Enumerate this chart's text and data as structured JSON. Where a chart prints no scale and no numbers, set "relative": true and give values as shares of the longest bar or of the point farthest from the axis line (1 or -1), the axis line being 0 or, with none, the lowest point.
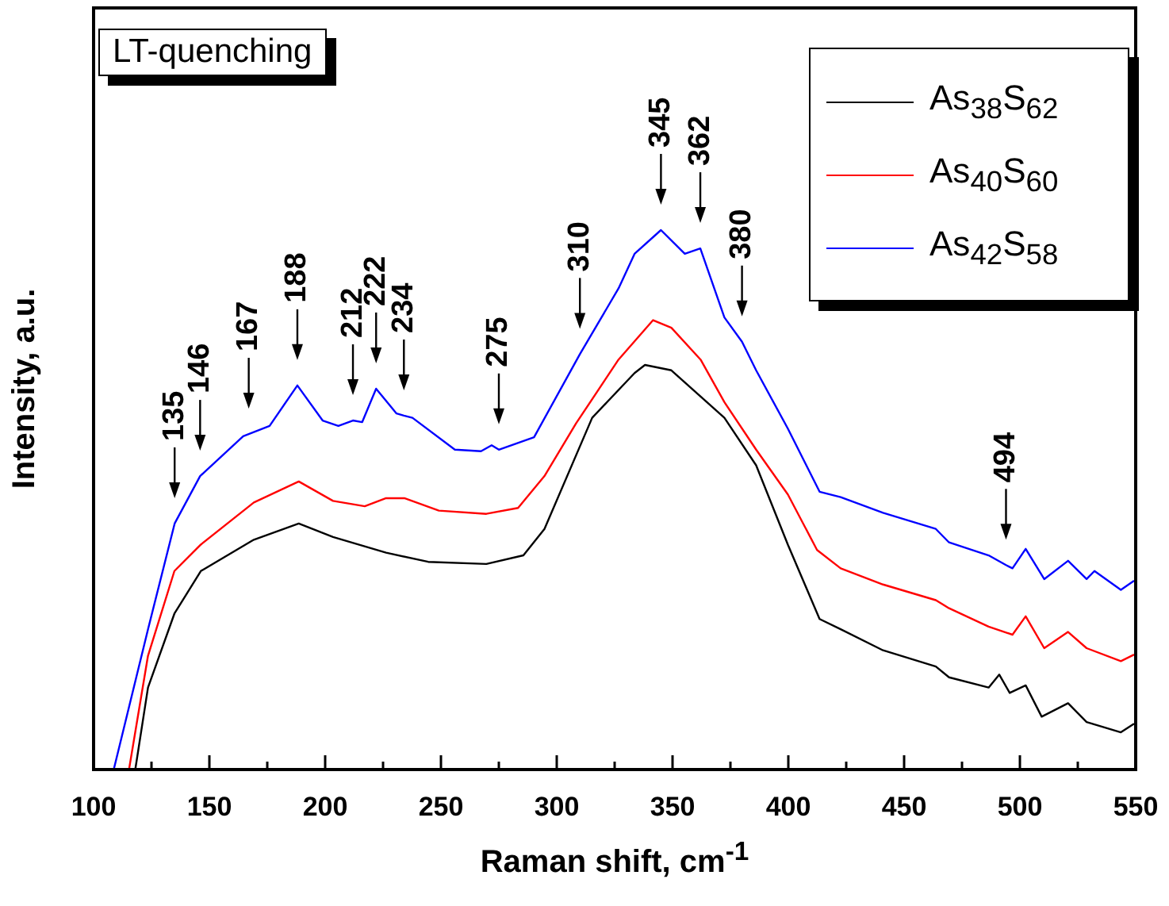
{
  "chart_data": {
    "type": "line",
    "title": "LT-quenching",
    "xlabel": "Raman shift, cm$^{-1}$",
    "ylabel": "Intensity, a.u.",
    "relative": true,
    "xlim": [
      100,
      550
    ],
    "xticks": [
      100,
      {
        "value": 125,
        "label": null
      },
      150,
      {
        "value": 175,
        "label": null
      },
      200,
      {
        "value": 225,
        "label": null
      },
      250,
      {
        "value": 275,
        "label": null
      },
      300,
      {
        "value": 325,
        "label": null
      },
      350,
      {
        "value": 375,
        "label": null
      },
      400,
      {
        "value": 425,
        "label": null
      },
      450,
      {
        "value": 475,
        "label": null
      },
      500,
      {
        "value": 525,
        "label": null
      },
      550
    ],
    "tick_labels": "x",
    "grid": false,
    "legend": "top right",
    "marker": "none",
    "line_style": "solid",
    "series": [
      {
        "name": "As$_{38}$S$_{62}$",
        "color": "#000000",
        "x": [
          118,
          123.5,
          134.9,
          146.3,
          169.2,
          188.6,
          203.4,
          226.3,
          244.5,
          269.6,
          285.6,
          294.7,
          315.3,
          333.6,
          338.1,
          349.5,
          372.4,
          386.1,
          399.8,
          413.5,
          422.6,
          440.9,
          463.7,
          469.4,
          486.5,
          491.1,
          495.6,
          502.5,
          509.4,
          520.8,
          528.8,
          543.6,
          549.3
        ],
        "values": [
          0,
          0.152,
          0.289,
          0.368,
          0.426,
          0.456,
          0.431,
          0.402,
          0.385,
          0.381,
          0.397,
          0.446,
          0.652,
          0.735,
          0.75,
          0.74,
          0.652,
          0.564,
          0.417,
          0.279,
          0.26,
          0.221,
          0.191,
          0.171,
          0.152,
          0.176,
          0.142,
          0.156,
          0.098,
          0.123,
          0.088,
          0.069,
          0.085
        ]
      },
      {
        "name": "As$_{40}$S$_{60}$",
        "color": "#ff0000",
        "x": [
          115.3,
          123.5,
          134.9,
          146.3,
          169.2,
          188.6,
          203.4,
          217.1,
          226.3,
          234.2,
          249.1,
          269.6,
          283.3,
          294.7,
          308.4,
          326.7,
          341.6,
          349.5,
          362.1,
          372.4,
          386.1,
          399.8,
          412.4,
          422.6,
          440.9,
          463.7,
          469.4,
          486.5,
          496.8,
          502.5,
          510.5,
          520.8,
          528.8,
          543.6,
          549.3
        ],
        "values": [
          0,
          0.211,
          0.368,
          0.417,
          0.495,
          0.534,
          0.498,
          0.488,
          0.503,
          0.503,
          0.48,
          0.474,
          0.485,
          0.544,
          0.642,
          0.76,
          0.833,
          0.819,
          0.76,
          0.681,
          0.593,
          0.51,
          0.407,
          0.373,
          0.343,
          0.314,
          0.299,
          0.265,
          0.25,
          0.284,
          0.225,
          0.255,
          0.225,
          0.201,
          0.213
        ]
      },
      {
        "name": "As$_{42}$S$_{58}$",
        "color": "#0000ff",
        "x": [
          108.7,
          123.5,
          135,
          146,
          164.6,
          167,
          176,
          188,
          198.9,
          205.7,
          212,
          216,
          222,
          230.8,
          234,
          237.7,
          256,
          267.3,
          271.9,
          275,
          290.2,
          310,
          326.7,
          333.6,
          345,
          355.3,
          362,
          372.4,
          380,
          386.1,
          399.8,
          413.5,
          422.6,
          440.9,
          463.7,
          469.4,
          486.5,
          494,
          496.8,
          502.5,
          510.5,
          520.8,
          528.8,
          532.2,
          543.6,
          549.3
        ],
        "values": [
          0,
          0.26,
          0.456,
          0.544,
          0.618,
          0.622,
          0.637,
          0.712,
          0.647,
          0.637,
          0.647,
          0.644,
          0.706,
          0.66,
          0.656,
          0.652,
          0.593,
          0.59,
          0.601,
          0.593,
          0.616,
          0.77,
          0.892,
          0.956,
          1,
          0.956,
          0.966,
          0.838,
          0.793,
          0.74,
          0.632,
          0.515,
          0.505,
          0.476,
          0.446,
          0.421,
          0.397,
          0.379,
          0.373,
          0.409,
          0.353,
          0.387,
          0.353,
          0.368,
          0.333,
          0.35
        ]
      }
    ],
    "annotations": [
      {
        "text": "135",
        "x": 135,
        "y": 0.456
      },
      {
        "text": "146",
        "x": 146,
        "y": 0.544
      },
      {
        "text": "167",
        "x": 167,
        "y": 0.622
      },
      {
        "text": "188",
        "x": 188,
        "y": 0.712
      },
      {
        "text": "212",
        "x": 212,
        "y": 0.647
      },
      {
        "text": "222",
        "x": 222,
        "y": 0.706
      },
      {
        "text": "234",
        "x": 234,
        "y": 0.656
      },
      {
        "text": "275",
        "x": 275,
        "y": 0.593
      },
      {
        "text": "310",
        "x": 310,
        "y": 0.77
      },
      {
        "text": "345",
        "x": 345,
        "y": 1
      },
      {
        "text": "362",
        "x": 362,
        "y": 0.966
      },
      {
        "text": "380",
        "x": 380,
        "y": 0.793
      },
      {
        "text": "494",
        "x": 494,
        "y": 0.379
      }
    ]
  }
}
